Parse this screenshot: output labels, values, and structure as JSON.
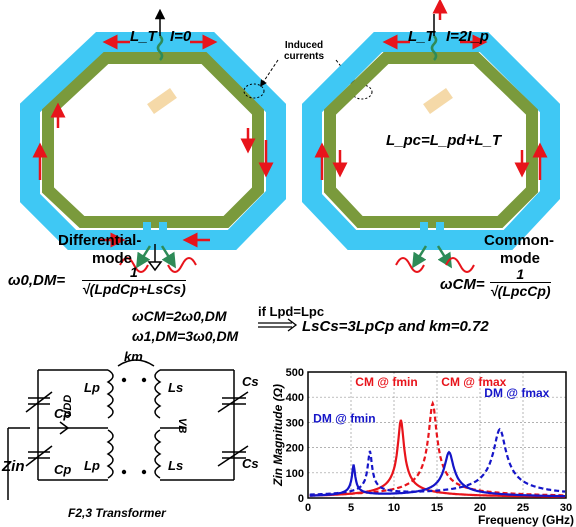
{
  "left_ring": {
    "inductor_label": "L_T",
    "current_label": "I=0",
    "mode_label_line1": "Differential-",
    "mode_label_line2": "mode"
  },
  "right_ring": {
    "inductor_label": "L_T",
    "current_label": "I=2I_p",
    "mode_label_line1": "Common-",
    "mode_label_line2": "mode",
    "inner_equation": "L_pc=L_pd+L_T"
  },
  "induced_currents_label": "Induced currents",
  "equations": {
    "w0dm_lhs": "ω0,DM=",
    "w0dm_num": "1",
    "w0dm_den": "√(LpdCp+LsCs)",
    "wcm_lhs": "ωCM=",
    "wcm_num": "1",
    "wcm_den": "√(LpcCp)",
    "wcm_relation": "ωCM=2ω0,DM",
    "w1dm_relation": "ω1,DM=3ω0,DM",
    "condition": "if Lpd=Lpc",
    "result": "LsCs=3LpCp and km=0.72"
  },
  "schematic": {
    "caption": "F2,3 Transformer",
    "km": "km",
    "lp_top": "Lp",
    "lp_bottom": "Lp",
    "ls_top": "Ls",
    "ls_bottom": "Ls",
    "cp_top": "Cp",
    "cp_bottom": "Cp",
    "cs_top": "Cs",
    "cs_bottom": "Cs",
    "vdd": "VDD",
    "vb": "VB",
    "zin": "Zin"
  },
  "colors": {
    "outer_ring": "#3fc8f4",
    "inner_ring": "#7a9a3c",
    "arrow_red": "#e8141b",
    "arrow_green": "#2e8b57",
    "cm_series": "#e8141b",
    "dm_series": "#1515c8"
  },
  "chart_data": {
    "type": "line",
    "xlabel": "Frequency (GHz)",
    "ylabel": "Zin Magnitude (Ω)",
    "xlim": [
      0,
      30
    ],
    "ylim": [
      0,
      500
    ],
    "xticks": [
      0,
      5,
      10,
      15,
      20,
      25,
      30
    ],
    "yticks": [
      0,
      100,
      200,
      300,
      400,
      500
    ],
    "grid": true,
    "annotations": [
      "CM @ fmin",
      "CM @ fmax",
      "DM @ fmin",
      "DM @ fmax"
    ],
    "series": [
      {
        "name": "CM @ fmin",
        "color": "#e8141b",
        "dash": false,
        "peaks": [
          [
            10.8,
            310
          ]
        ]
      },
      {
        "name": "CM @ fmax",
        "color": "#e8141b",
        "dash": true,
        "peaks": [
          [
            14.5,
            375
          ]
        ]
      },
      {
        "name": "DM @ fmin",
        "color": "#1515c8",
        "dash": false,
        "peaks": [
          [
            5.3,
            125
          ],
          [
            16.4,
            180
          ]
        ]
      },
      {
        "name": "DM @ fmax",
        "color": "#1515c8",
        "dash": true,
        "peaks": [
          [
            7.2,
            175
          ],
          [
            22.3,
            270
          ]
        ]
      }
    ]
  }
}
